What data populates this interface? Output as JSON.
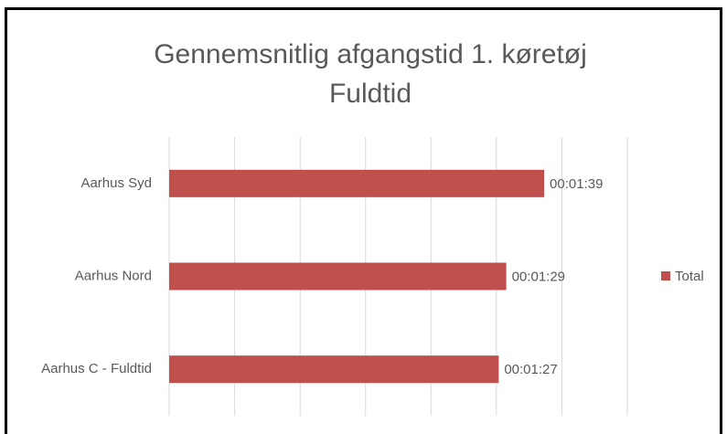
{
  "chart_data": {
    "type": "bar",
    "orientation": "horizontal",
    "title": [
      "Gennemsnitlig afgangstid 1. køretøj",
      "Fuldtid"
    ],
    "categories": [
      "Aarhus Syd",
      "Aarhus Nord",
      "Aarhus C - Fuldtid"
    ],
    "series": [
      {
        "name": "Total",
        "color": "#c0504d",
        "values": [
          99,
          89,
          87
        ],
        "value_labels": [
          "00:01:39",
          "00:01:29",
          "00:01:27"
        ]
      }
    ],
    "xlim": [
      0,
      120.96
    ],
    "xticks": [
      0,
      17.28,
      34.56,
      51.84,
      69.12,
      86.4,
      103.68,
      120.96
    ],
    "grid": true,
    "legend": "right"
  }
}
